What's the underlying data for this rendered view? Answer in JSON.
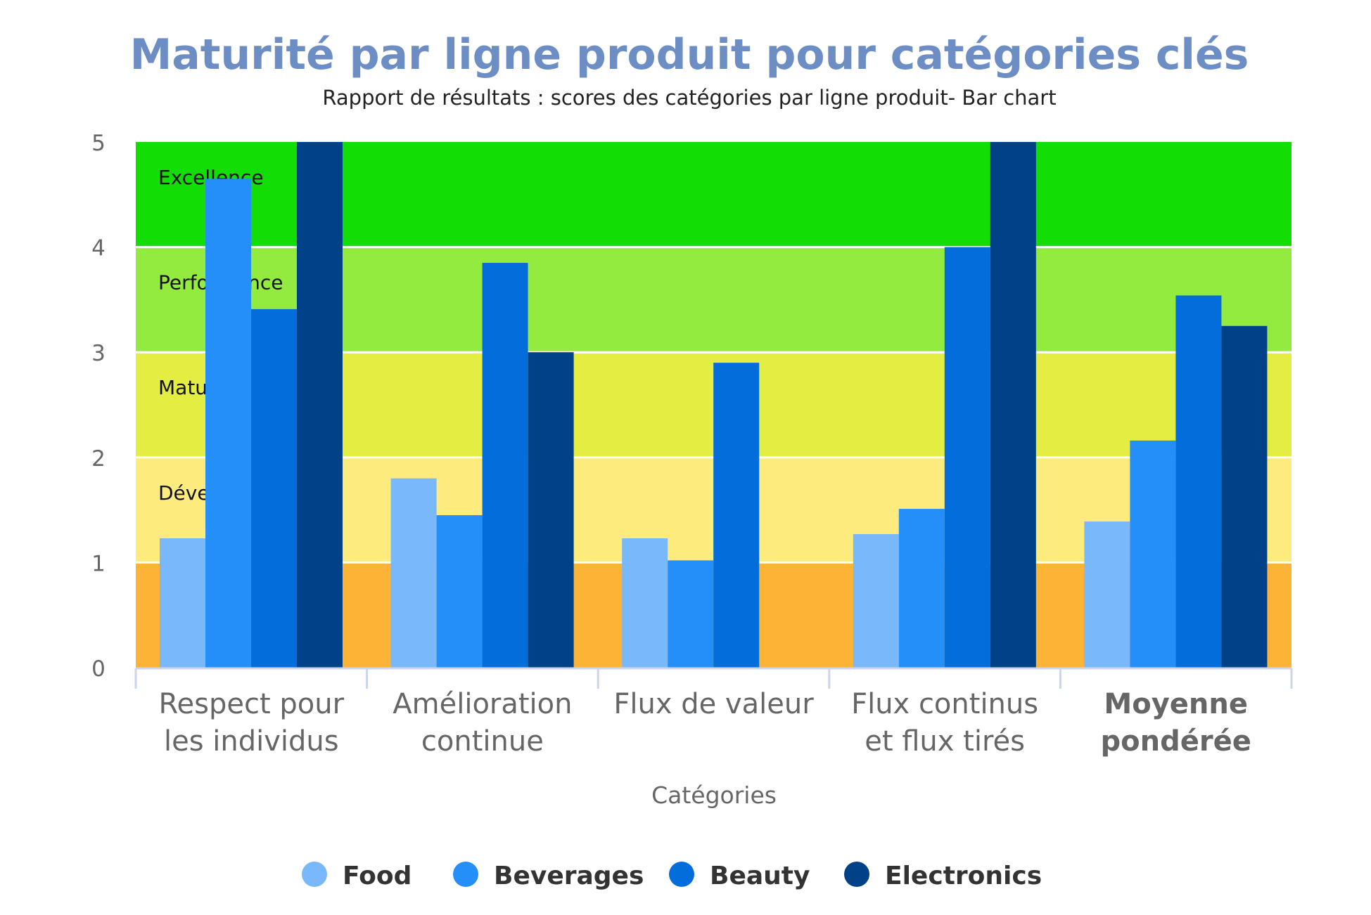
{
  "chart_data": {
    "type": "bar",
    "title": "Maturité par ligne produit pour catégories clés",
    "subtitle": "Rapport de résultats : scores des catégories par ligne produit- Bar chart",
    "xlabel": "Catégories",
    "ylabel": "",
    "ylim": [
      0,
      5
    ],
    "yticks": [
      0,
      1,
      2,
      3,
      4,
      5
    ],
    "grid": false,
    "legend_position": "bottom",
    "categories": [
      [
        "Respect pour",
        "les individus"
      ],
      [
        "Amélioration",
        "continue"
      ],
      [
        "Flux de valeur"
      ],
      [
        "Flux continus",
        "et flux tirés"
      ],
      [
        "Moyenne",
        "pondérée"
      ]
    ],
    "bold_categories": [
      4
    ],
    "series": [
      {
        "name": "Food",
        "color": "#7ab8fc",
        "values": [
          1.23,
          1.8,
          1.23,
          1.27,
          1.39
        ]
      },
      {
        "name": "Beverages",
        "color": "#248ef9",
        "values": [
          4.65,
          1.45,
          1.02,
          1.51,
          2.16
        ]
      },
      {
        "name": "Beauty",
        "color": "#026ddb",
        "values": [
          3.41,
          3.85,
          2.9,
          4.0,
          3.54
        ]
      },
      {
        "name": "Electronics",
        "color": "#004188",
        "values": [
          5.0,
          3.0,
          null,
          5.0,
          3.25
        ]
      }
    ],
    "bands": [
      {
        "from": 0,
        "to": 1,
        "color": "#fcb336",
        "label": ""
      },
      {
        "from": 1,
        "to": 2,
        "color": "#fdec7d",
        "label": "Développement"
      },
      {
        "from": 2,
        "to": 3,
        "color": "#e4ed42",
        "label": "Maturité"
      },
      {
        "from": 3,
        "to": 4,
        "color": "#94eb3f",
        "label": "Performance"
      },
      {
        "from": 4,
        "to": 5,
        "color": "#12dd04",
        "label": "Excellence"
      }
    ]
  },
  "colors": {
    "title": "#6d8ec5",
    "subtitle": "#222222",
    "axis_text": "#666666",
    "axis_line": "#ccd6eb",
    "band_divider": "#ffffff"
  }
}
